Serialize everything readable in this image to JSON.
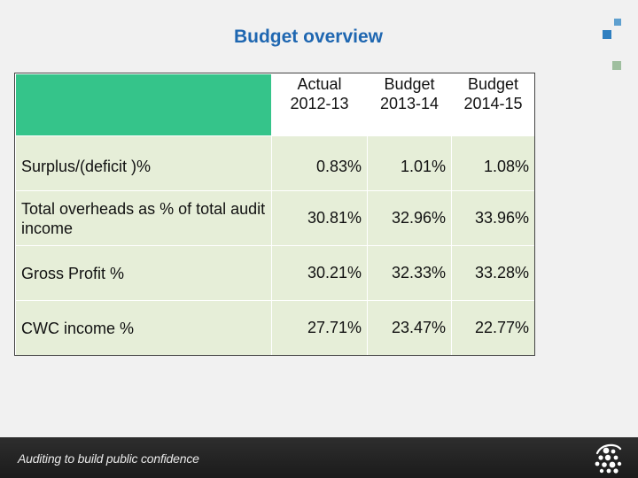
{
  "title": "Budget overview",
  "table": {
    "headers": [
      {
        "line1": "Actual",
        "line2": "2012-13"
      },
      {
        "line1": "Budget",
        "line2": "2013-14"
      },
      {
        "line1": "Budget",
        "line2": "2014-15"
      }
    ],
    "rows": [
      {
        "label": "Surplus/(deficit )%",
        "values": [
          "0.83%",
          "1.01%",
          "1.08%"
        ]
      },
      {
        "label": "Total overheads as % of total audit income",
        "values": [
          "30.81%",
          "32.96%",
          "33.96%"
        ]
      },
      {
        "label": "Gross Profit %",
        "values": [
          "30.21%",
          "32.33%",
          "33.28%"
        ]
      },
      {
        "label": "CWC income %",
        "values": [
          "27.71%",
          "23.47%",
          "22.77%"
        ]
      }
    ]
  },
  "footer": {
    "tagline": "Auditing to build public confidence",
    "logo_icon": "audit-commission-logo-icon"
  },
  "colors": {
    "title": "#1f67b1",
    "header_accent": "#35c48a",
    "cell_background": "#e6eed8",
    "footer_background": "#222222"
  }
}
